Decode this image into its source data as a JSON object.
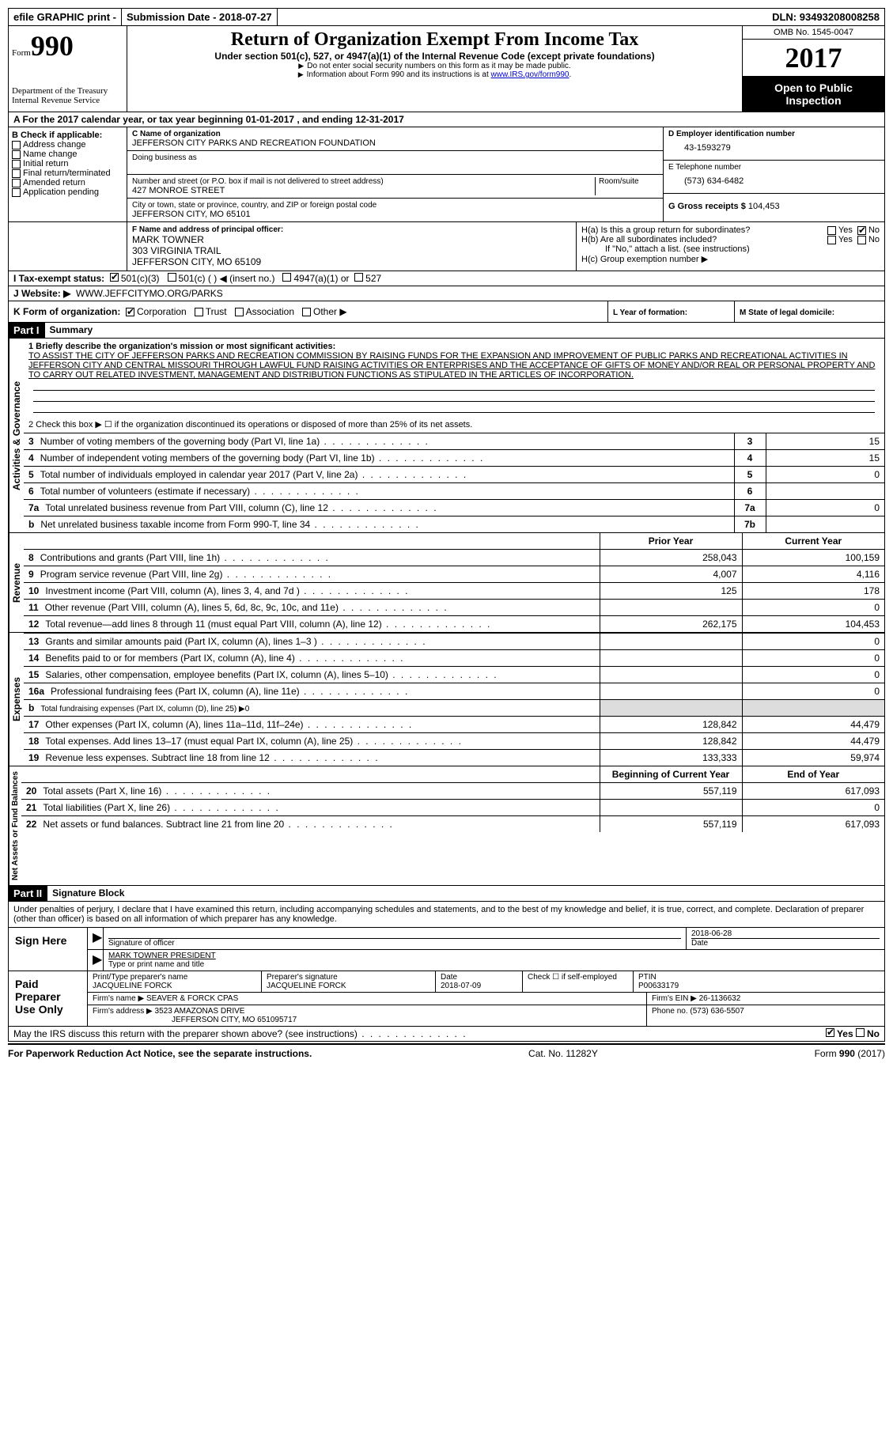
{
  "header_bar": {
    "efile": "efile GRAPHIC print - ",
    "submission_label": "Submission Date - ",
    "submission_date": "2018-07-27",
    "dln_label": "DLN: ",
    "dln": "93493208008258"
  },
  "top": {
    "form_word": "Form",
    "form_number": "990",
    "dept": "Department of the Treasury",
    "irs": "Internal Revenue Service",
    "title": "Return of Organization Exempt From Income Tax",
    "subtitle": "Under section 501(c), 527, or 4947(a)(1) of the Internal Revenue Code (except private foundations)",
    "note1": "Do not enter social security numbers on this form as it may be made public.",
    "note2_prefix": "Information about Form 990 and its instructions is at ",
    "note2_link": "www.IRS.gov/form990",
    "omb": "OMB No. 1545-0047",
    "year": "2017",
    "inspection": "Open to Public Inspection"
  },
  "period": {
    "label_a": "A   For the 2017 calendar year, or tax year beginning ",
    "begin": "01-01-2017",
    "mid": "   , and ending ",
    "end": "12-31-2017"
  },
  "box_b": {
    "header": "B Check if applicable:",
    "items": [
      "Address change",
      "Name change",
      "Initial return",
      "Final return/terminated",
      "Amended return",
      "Application pending"
    ]
  },
  "box_c": {
    "name_label": "C Name of organization",
    "name": "JEFFERSON CITY PARKS AND RECREATION FOUNDATION",
    "dba_label": "Doing business as",
    "street_label": "Number and street (or P.O. box if mail is not delivered to street address)",
    "room_label": "Room/suite",
    "street": "427 MONROE STREET",
    "city_label": "City or town, state or province, country, and ZIP or foreign postal code",
    "city": "JEFFERSON CITY, MO  65101"
  },
  "box_d": {
    "label": "D Employer identification number",
    "value": "43-1593279"
  },
  "box_e": {
    "label": "E Telephone number",
    "value": "(573) 634-6482"
  },
  "box_g": {
    "label": "G Gross receipts $ ",
    "value": "104,453"
  },
  "box_f": {
    "label": "F  Name and address of principal officer:",
    "line1": "MARK TOWNER",
    "line2": "303 VIRGINIA TRAIL",
    "line3": "JEFFERSON CITY, MO  65109"
  },
  "box_h": {
    "a_label": "H(a)  Is this a group return for subordinates?",
    "b_label": "H(b)  Are all subordinates included?",
    "note": "If \"No,\" attach a list. (see instructions)",
    "c_label": "H(c)  Group exemption number ▶"
  },
  "box_i": {
    "label": "I   Tax-exempt status:",
    "opt1": "501(c)(3)",
    "opt2": "501(c) (   ) ◀ (insert no.)",
    "opt3": "4947(a)(1) or",
    "opt4": "527"
  },
  "box_j": {
    "label": "J   Website: ▶",
    "value": "WWW.JEFFCITYMO.ORG/PARKS"
  },
  "box_k": {
    "label": "K Form of organization:",
    "opts": [
      "Corporation",
      "Trust",
      "Association",
      "Other ▶"
    ]
  },
  "box_l": {
    "label": "L Year of formation:"
  },
  "box_m": {
    "label": "M State of legal domicile:"
  },
  "part1": {
    "tab": "Activities & Governance",
    "header": "Part I",
    "title": "Summary",
    "q1_label": "1 Briefly describe the organization's mission or most significant activities:",
    "q1_text": "TO ASSIST THE CITY OF JEFFERSON PARKS AND RECREATION COMMISSION BY RAISING FUNDS FOR THE EXPANSION AND IMPROVEMENT OF PUBLIC PARKS AND RECREATIONAL ACTIVITIES IN JEFFERSON CITY AND CENTRAL MISSOURI THROUGH LAWFUL FUND RAISING ACTIVITIES OR ENTERPRISES AND THE ACCEPTANCE OF GIFTS OF MONEY AND/OR REAL OR PERSONAL PROPERTY AND TO CARRY OUT RELATED INVESTMENT, MANAGEMENT AND DISTRIBUTION FUNCTIONS AS STIPULATED IN THE ARTICLES OF INCORPORATION.",
    "q2": "2   Check this box ▶ ☐ if the organization discontinued its operations or disposed of more than 25% of its net assets.",
    "rows": [
      {
        "num": "3",
        "desc": "Number of voting members of the governing body (Part VI, line 1a)",
        "box": "3",
        "val": "15"
      },
      {
        "num": "4",
        "desc": "Number of independent voting members of the governing body (Part VI, line 1b)",
        "box": "4",
        "val": "15"
      },
      {
        "num": "5",
        "desc": "Total number of individuals employed in calendar year 2017 (Part V, line 2a)",
        "box": "5",
        "val": "0"
      },
      {
        "num": "6",
        "desc": "Total number of volunteers (estimate if necessary)",
        "box": "6",
        "val": ""
      },
      {
        "num": "7a",
        "desc": "Total unrelated business revenue from Part VIII, column (C), line 12",
        "box": "7a",
        "val": "0"
      },
      {
        "num": "b",
        "desc": "Net unrelated business taxable income from Form 990-T, line 34",
        "box": "7b",
        "val": ""
      }
    ]
  },
  "revenue": {
    "tab": "Revenue",
    "header_prior": "Prior Year",
    "header_current": "Current Year",
    "rows": [
      {
        "num": "8",
        "desc": "Contributions and grants (Part VIII, line 1h)",
        "prior": "258,043",
        "curr": "100,159"
      },
      {
        "num": "9",
        "desc": "Program service revenue (Part VIII, line 2g)",
        "prior": "4,007",
        "curr": "4,116"
      },
      {
        "num": "10",
        "desc": "Investment income (Part VIII, column (A), lines 3, 4, and 7d )",
        "prior": "125",
        "curr": "178"
      },
      {
        "num": "11",
        "desc": "Other revenue (Part VIII, column (A), lines 5, 6d, 8c, 9c, 10c, and 11e)",
        "prior": "",
        "curr": "0"
      },
      {
        "num": "12",
        "desc": "Total revenue—add lines 8 through 11 (must equal Part VIII, column (A), line 12)",
        "prior": "262,175",
        "curr": "104,453"
      }
    ]
  },
  "expenses": {
    "tab": "Expenses",
    "rows": [
      {
        "num": "13",
        "desc": "Grants and similar amounts paid (Part IX, column (A), lines 1–3 )",
        "prior": "",
        "curr": "0"
      },
      {
        "num": "14",
        "desc": "Benefits paid to or for members (Part IX, column (A), line 4)",
        "prior": "",
        "curr": "0"
      },
      {
        "num": "15",
        "desc": "Salaries, other compensation, employee benefits (Part IX, column (A), lines 5–10)",
        "prior": "",
        "curr": "0"
      },
      {
        "num": "16a",
        "desc": "Professional fundraising fees (Part IX, column (A), line 11e)",
        "prior": "",
        "curr": "0"
      },
      {
        "num": "b",
        "desc": "Total fundraising expenses (Part IX, column (D), line 25) ▶0",
        "prior": "SHADE",
        "curr": "SHADE"
      },
      {
        "num": "17",
        "desc": "Other expenses (Part IX, column (A), lines 11a–11d, 11f–24e)",
        "prior": "128,842",
        "curr": "44,479"
      },
      {
        "num": "18",
        "desc": "Total expenses. Add lines 13–17 (must equal Part IX, column (A), line 25)",
        "prior": "128,842",
        "curr": "44,479"
      },
      {
        "num": "19",
        "desc": "Revenue less expenses. Subtract line 18 from line 12",
        "prior": "133,333",
        "curr": "59,974"
      }
    ]
  },
  "netassets": {
    "tab": "Net Assets or Fund Balances",
    "header_begin": "Beginning of Current Year",
    "header_end": "End of Year",
    "rows": [
      {
        "num": "20",
        "desc": "Total assets (Part X, line 16)",
        "begin": "557,119",
        "end": "617,093"
      },
      {
        "num": "21",
        "desc": "Total liabilities (Part X, line 26)",
        "begin": "",
        "end": "0"
      },
      {
        "num": "22",
        "desc": "Net assets or fund balances. Subtract line 21 from line 20",
        "begin": "557,119",
        "end": "617,093"
      }
    ]
  },
  "part2": {
    "header": "Part II",
    "title": "Signature Block",
    "perjury": "Under penalties of perjury, I declare that I have examined this return, including accompanying schedules and statements, and to the best of my knowledge and belief, it is true, correct, and complete. Declaration of preparer (other than officer) is based on all information of which preparer has any knowledge.",
    "sign_here": "Sign Here",
    "sig_officer": "Signature of officer",
    "sig_date": "2018-06-28",
    "date_label": "Date",
    "officer_name": "MARK TOWNER PRESIDENT",
    "name_title_label": "Type or print name and title",
    "paid_header": "Paid Preparer Use Only",
    "prep_name_label": "Print/Type preparer's name",
    "prep_name": "JACQUELINE FORCK",
    "prep_sig_label": "Preparer's signature",
    "prep_sig": "JACQUELINE FORCK",
    "prep_date": "2018-07-09",
    "check_self": "Check ☐ if self-employed",
    "ptin_label": "PTIN",
    "ptin": "P00633179",
    "firm_name_label": "Firm's name    ▶ ",
    "firm_name": "SEAVER & FORCK CPAS",
    "firm_ein_label": "Firm's EIN ▶ ",
    "firm_ein": "26-1136632",
    "firm_addr_label": "Firm's address ▶ ",
    "firm_addr": "3523 AMAZONAS DRIVE",
    "firm_city": "JEFFERSON CITY, MO  651095717",
    "phone_label": "Phone no. ",
    "phone": "(573) 636-5507",
    "discuss": "May the IRS discuss this return with the preparer shown above? (see instructions)"
  },
  "footer": {
    "left": "For Paperwork Reduction Act Notice, see the separate instructions.",
    "mid": "Cat. No. 11282Y",
    "right_form": "Form 990 (2017)"
  }
}
